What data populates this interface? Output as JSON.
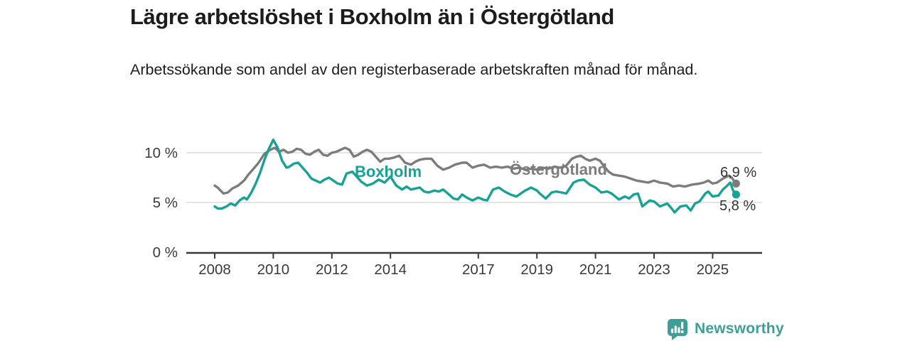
{
  "header": {
    "title": "Lägre arbetslöshet i Boxholm än i Östergötland",
    "subtitle": "Arbetssökande som andel av den registerbaserade arbetskraften månad för månad."
  },
  "chart_data": {
    "type": "line",
    "title": "Lägre arbetslöshet i Boxholm än i Östergötland",
    "unit": "%",
    "grid": "horizontal",
    "legend_position": "inline-labels",
    "x_axis": {
      "range": [
        2008,
        2025.83
      ],
      "ticks": [
        {
          "value": 2008,
          "label": "2008"
        },
        {
          "value": 2010,
          "label": "2010"
        },
        {
          "value": 2012,
          "label": "2012"
        },
        {
          "value": 2014,
          "label": "2014"
        },
        {
          "value": 2017,
          "label": "2017"
        },
        {
          "value": 2019,
          "label": "2019"
        },
        {
          "value": 2021,
          "label": "2021"
        },
        {
          "value": 2023,
          "label": "2023"
        },
        {
          "value": 2025,
          "label": "2025"
        }
      ]
    },
    "y_axis": {
      "range": [
        0,
        11.8
      ],
      "ticks": [
        {
          "value": 0,
          "label": "0 %"
        },
        {
          "value": 5,
          "label": "5 %"
        },
        {
          "value": 10,
          "label": "10 %"
        }
      ]
    },
    "series": [
      {
        "name": "Östergötland",
        "color": "#7c7c7c",
        "end_label": "6,9 %",
        "points": [
          [
            2008.0,
            6.7
          ],
          [
            2008.1,
            6.5
          ],
          [
            2008.3,
            5.9
          ],
          [
            2008.45,
            6.0
          ],
          [
            2008.6,
            6.4
          ],
          [
            2008.8,
            6.7
          ],
          [
            2009.0,
            7.2
          ],
          [
            2009.15,
            7.8
          ],
          [
            2009.3,
            8.3
          ],
          [
            2009.5,
            9.0
          ],
          [
            2009.7,
            9.9
          ],
          [
            2009.9,
            10.3
          ],
          [
            2010.05,
            10.5
          ],
          [
            2010.2,
            10.1
          ],
          [
            2010.35,
            10.3
          ],
          [
            2010.5,
            10.0
          ],
          [
            2010.65,
            10.1
          ],
          [
            2010.8,
            10.4
          ],
          [
            2010.95,
            10.3
          ],
          [
            2011.1,
            9.9
          ],
          [
            2011.25,
            9.8
          ],
          [
            2011.4,
            10.1
          ],
          [
            2011.55,
            10.3
          ],
          [
            2011.7,
            9.8
          ],
          [
            2011.85,
            9.7
          ],
          [
            2012.0,
            10.0
          ],
          [
            2012.15,
            10.1
          ],
          [
            2012.3,
            10.3
          ],
          [
            2012.45,
            10.5
          ],
          [
            2012.6,
            10.3
          ],
          [
            2012.75,
            9.6
          ],
          [
            2012.9,
            9.8
          ],
          [
            2013.05,
            10.1
          ],
          [
            2013.2,
            10.3
          ],
          [
            2013.35,
            10.1
          ],
          [
            2013.5,
            9.6
          ],
          [
            2013.65,
            9.1
          ],
          [
            2013.8,
            9.4
          ],
          [
            2013.95,
            9.4
          ],
          [
            2014.1,
            9.5
          ],
          [
            2014.3,
            9.7
          ],
          [
            2014.5,
            9.0
          ],
          [
            2014.7,
            8.8
          ],
          [
            2014.85,
            9.1
          ],
          [
            2015.0,
            9.3
          ],
          [
            2015.2,
            9.4
          ],
          [
            2015.4,
            9.4
          ],
          [
            2015.6,
            8.7
          ],
          [
            2015.8,
            8.3
          ],
          [
            2016.0,
            8.5
          ],
          [
            2016.2,
            8.8
          ],
          [
            2016.45,
            9.0
          ],
          [
            2016.6,
            9.0
          ],
          [
            2016.8,
            8.5
          ],
          [
            2017.0,
            8.7
          ],
          [
            2017.2,
            8.8
          ],
          [
            2017.4,
            8.5
          ],
          [
            2017.6,
            8.6
          ],
          [
            2017.8,
            8.5
          ],
          [
            2018.0,
            8.6
          ],
          [
            2018.2,
            8.4
          ],
          [
            2018.4,
            8.5
          ],
          [
            2018.6,
            8.3
          ],
          [
            2018.8,
            8.4
          ],
          [
            2019.0,
            8.3
          ],
          [
            2019.2,
            8.5
          ],
          [
            2019.4,
            8.4
          ],
          [
            2019.6,
            8.6
          ],
          [
            2019.8,
            8.5
          ],
          [
            2020.0,
            8.7
          ],
          [
            2020.2,
            9.4
          ],
          [
            2020.35,
            9.6
          ],
          [
            2020.5,
            9.7
          ],
          [
            2020.65,
            9.4
          ],
          [
            2020.8,
            9.2
          ],
          [
            2021.0,
            9.4
          ],
          [
            2021.15,
            9.2
          ],
          [
            2021.3,
            8.6
          ],
          [
            2021.45,
            8.1
          ],
          [
            2021.6,
            7.8
          ],
          [
            2021.8,
            7.7
          ],
          [
            2022.0,
            7.6
          ],
          [
            2022.2,
            7.4
          ],
          [
            2022.4,
            7.2
          ],
          [
            2022.6,
            7.1
          ],
          [
            2022.8,
            7.0
          ],
          [
            2023.0,
            7.2
          ],
          [
            2023.2,
            7.0
          ],
          [
            2023.45,
            6.9
          ],
          [
            2023.65,
            6.6
          ],
          [
            2023.85,
            6.7
          ],
          [
            2024.05,
            6.6
          ],
          [
            2024.3,
            6.8
          ],
          [
            2024.55,
            6.9
          ],
          [
            2024.7,
            7.0
          ],
          [
            2024.85,
            7.2
          ],
          [
            2025.0,
            6.9
          ],
          [
            2025.15,
            7.0
          ],
          [
            2025.35,
            7.4
          ],
          [
            2025.55,
            7.7
          ],
          [
            2025.65,
            7.5
          ],
          [
            2025.8,
            6.9
          ]
        ]
      },
      {
        "name": "Boxholm",
        "color": "#16a294",
        "end_label": "5,8 %",
        "points": [
          [
            2008.0,
            4.6
          ],
          [
            2008.1,
            4.4
          ],
          [
            2008.25,
            4.4
          ],
          [
            2008.4,
            4.6
          ],
          [
            2008.55,
            4.9
          ],
          [
            2008.7,
            4.7
          ],
          [
            2008.85,
            5.2
          ],
          [
            2009.0,
            5.5
          ],
          [
            2009.1,
            5.3
          ],
          [
            2009.25,
            6.0
          ],
          [
            2009.4,
            6.9
          ],
          [
            2009.55,
            8.0
          ],
          [
            2009.7,
            9.3
          ],
          [
            2009.85,
            10.4
          ],
          [
            2010.0,
            11.3
          ],
          [
            2010.15,
            10.5
          ],
          [
            2010.3,
            9.2
          ],
          [
            2010.45,
            8.5
          ],
          [
            2010.55,
            8.6
          ],
          [
            2010.7,
            8.9
          ],
          [
            2010.85,
            9.0
          ],
          [
            2011.0,
            8.5
          ],
          [
            2011.15,
            8.0
          ],
          [
            2011.3,
            7.4
          ],
          [
            2011.45,
            7.2
          ],
          [
            2011.6,
            7.0
          ],
          [
            2011.75,
            7.3
          ],
          [
            2011.9,
            7.5
          ],
          [
            2012.05,
            7.2
          ],
          [
            2012.2,
            6.9
          ],
          [
            2012.35,
            6.8
          ],
          [
            2012.5,
            7.9
          ],
          [
            2012.7,
            8.1
          ],
          [
            2012.85,
            7.6
          ],
          [
            2013.0,
            7.1
          ],
          [
            2013.2,
            6.7
          ],
          [
            2013.4,
            6.9
          ],
          [
            2013.6,
            7.3
          ],
          [
            2013.8,
            7.0
          ],
          [
            2014.0,
            7.6
          ],
          [
            2014.2,
            6.7
          ],
          [
            2014.4,
            6.3
          ],
          [
            2014.55,
            6.6
          ],
          [
            2014.7,
            6.3
          ],
          [
            2014.85,
            6.4
          ],
          [
            2015.0,
            6.5
          ],
          [
            2015.15,
            6.1
          ],
          [
            2015.3,
            6.0
          ],
          [
            2015.5,
            6.2
          ],
          [
            2015.65,
            6.1
          ],
          [
            2015.8,
            6.3
          ],
          [
            2016.0,
            5.8
          ],
          [
            2016.15,
            5.4
          ],
          [
            2016.3,
            5.3
          ],
          [
            2016.45,
            5.8
          ],
          [
            2016.6,
            5.5
          ],
          [
            2016.8,
            5.2
          ],
          [
            2017.0,
            5.5
          ],
          [
            2017.15,
            5.3
          ],
          [
            2017.3,
            5.2
          ],
          [
            2017.5,
            6.3
          ],
          [
            2017.7,
            6.5
          ],
          [
            2017.9,
            6.1
          ],
          [
            2018.1,
            5.8
          ],
          [
            2018.3,
            5.6
          ],
          [
            2018.6,
            6.2
          ],
          [
            2018.8,
            6.5
          ],
          [
            2019.0,
            6.2
          ],
          [
            2019.1,
            5.9
          ],
          [
            2019.3,
            5.4
          ],
          [
            2019.5,
            6.0
          ],
          [
            2019.65,
            6.1
          ],
          [
            2019.85,
            6.0
          ],
          [
            2020.0,
            5.9
          ],
          [
            2020.25,
            7.0
          ],
          [
            2020.4,
            7.2
          ],
          [
            2020.6,
            7.3
          ],
          [
            2020.8,
            6.8
          ],
          [
            2021.0,
            6.5
          ],
          [
            2021.2,
            6.0
          ],
          [
            2021.4,
            6.1
          ],
          [
            2021.55,
            5.9
          ],
          [
            2021.8,
            5.3
          ],
          [
            2022.0,
            5.6
          ],
          [
            2022.15,
            5.4
          ],
          [
            2022.3,
            5.8
          ],
          [
            2022.45,
            5.9
          ],
          [
            2022.6,
            4.6
          ],
          [
            2022.85,
            5.2
          ],
          [
            2023.0,
            5.1
          ],
          [
            2023.2,
            4.6
          ],
          [
            2023.45,
            4.9
          ],
          [
            2023.6,
            4.4
          ],
          [
            2023.7,
            4.0
          ],
          [
            2023.9,
            4.6
          ],
          [
            2024.1,
            4.7
          ],
          [
            2024.25,
            4.2
          ],
          [
            2024.4,
            4.9
          ],
          [
            2024.55,
            5.1
          ],
          [
            2024.75,
            5.9
          ],
          [
            2024.85,
            6.1
          ],
          [
            2025.0,
            5.6
          ],
          [
            2025.2,
            5.7
          ],
          [
            2025.35,
            6.3
          ],
          [
            2025.5,
            6.7
          ],
          [
            2025.6,
            7.0
          ],
          [
            2025.7,
            6.2
          ],
          [
            2025.8,
            5.8
          ]
        ]
      }
    ],
    "colors": {
      "boxholm": "#16a294",
      "ostergotland": "#7c7c7c",
      "axis_text": "#3a3a3a",
      "grid": "#dcdcdc",
      "brand": "#3f9f98"
    }
  },
  "footer": {
    "brand": "Newsworthy"
  }
}
